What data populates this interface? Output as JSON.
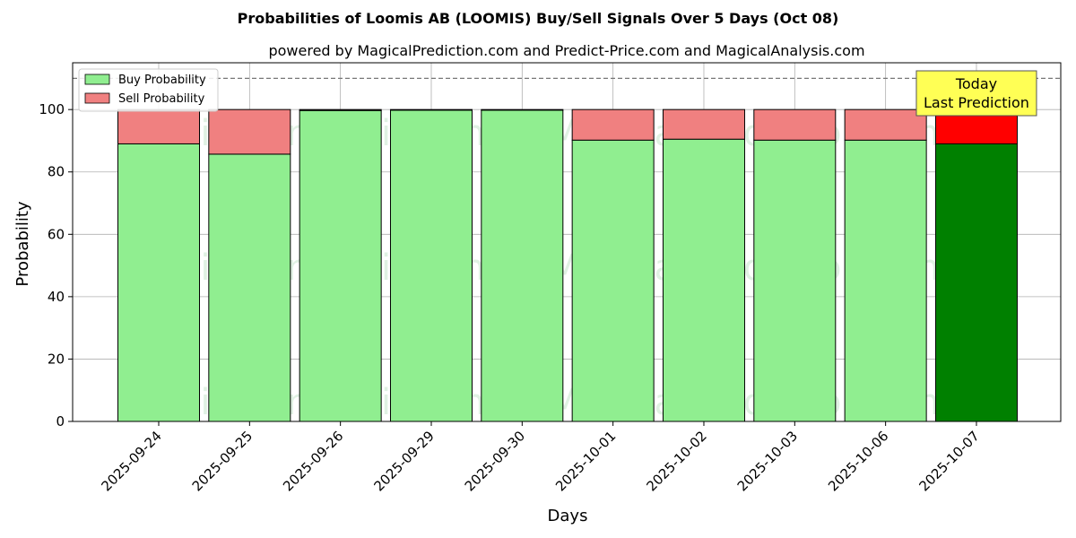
{
  "chart_data": {
    "type": "bar",
    "stacked": true,
    "title": "Probabilities of Loomis AB (LOOMIS) Buy/Sell Signals Over 5 Days (Oct 08)",
    "subtitle": "powered by MagicalPrediction.com and Predict-Price.com and MagicalAnalysis.com",
    "xlabel": "Days",
    "ylabel": "Probability",
    "ylim": [
      0,
      115
    ],
    "yticks": [
      0,
      20,
      40,
      60,
      80,
      100
    ],
    "categories": [
      "2025-09-24",
      "2025-09-25",
      "2025-09-26",
      "2025-09-29",
      "2025-09-30",
      "2025-10-01",
      "2025-10-02",
      "2025-10-03",
      "2025-10-06",
      "2025-10-07"
    ],
    "series": [
      {
        "name": "Buy Probability",
        "values": [
          89,
          85.7,
          99.7,
          99.8,
          99.8,
          90.2,
          90.5,
          90.2,
          90.2,
          89
        ],
        "color": "#90ee90",
        "highlight_color": "#008000"
      },
      {
        "name": "Sell Probability",
        "values": [
          11,
          14.3,
          0.3,
          0.2,
          0.2,
          9.8,
          9.5,
          9.8,
          9.8,
          11
        ],
        "color": "#f08080",
        "highlight_color": "#ff0000"
      }
    ],
    "highlight_index": 9,
    "reference_line": 110,
    "grid": true,
    "legend_position": "top-left",
    "annotation": {
      "lines": [
        "Today",
        "Last Prediction"
      ],
      "background": "#ffff55"
    },
    "watermarks": [
      "MagicalAnalysis.com",
      "MagicalPrediction.com"
    ]
  }
}
